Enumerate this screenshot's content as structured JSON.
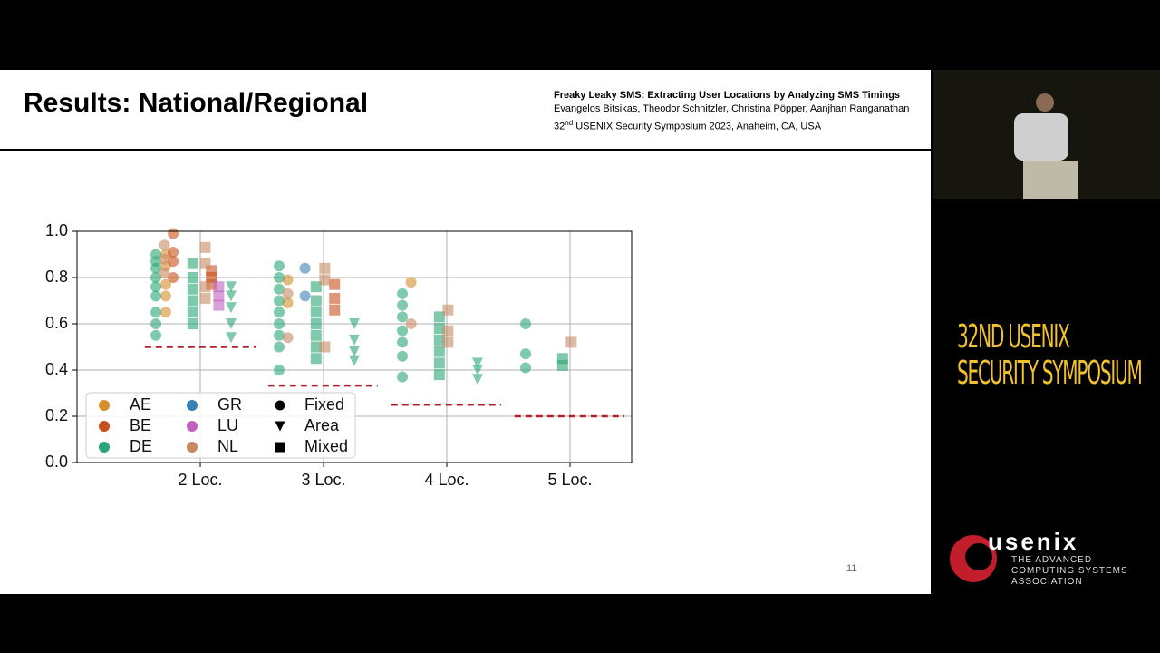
{
  "slide": {
    "title": "Results: National/Regional",
    "citation": {
      "paper": "Freaky Leaky SMS: Extracting User Locations by Analyzing SMS Timings",
      "authors": "Evangelos Bitsikas, Theodor Schnitzler, Christina Pöpper, Aanjhan Ranganathan",
      "venue_number": "32",
      "venue_suffix": "nd",
      "venue_rest": "USENIX Security Symposium 2023, Anaheim, CA, USA"
    },
    "page_number": "11"
  },
  "sidebar": {
    "symposium": [
      "32ND USENIX",
      "SECURITY SYMPOSIUM"
    ],
    "logo": "usenix",
    "tagline": [
      "THE ADVANCED",
      "COMPUTING SYSTEMS",
      "ASSOCIATION"
    ]
  },
  "chart_data": {
    "type": "scatter",
    "xlim": [
      1,
      5.5
    ],
    "ylim": [
      0,
      1
    ],
    "xticks": [
      {
        "value": 2,
        "label": "2 Loc."
      },
      {
        "value": 3,
        "label": "3 Loc."
      },
      {
        "value": 4,
        "label": "4 Loc."
      },
      {
        "value": 5,
        "label": "5 Loc."
      }
    ],
    "yticks": [
      {
        "value": 0,
        "label": "0.0"
      },
      0.2,
      0.4,
      0.6,
      0.8,
      {
        "value": 1,
        "label": "1.0"
      }
    ],
    "grid": true,
    "legend": "lower left",
    "series": [
      {
        "name": "AE",
        "color": "#d4902a",
        "x": [
          1.72,
          1.72,
          1.72,
          1.72,
          1.72,
          2.71,
          2.71,
          3.71
        ],
        "values": [
          0.9,
          0.85,
          0.77,
          0.72,
          0.65,
          0.79,
          0.69,
          0.78
        ],
        "markers": [
          "circle",
          "circle",
          "circle",
          "circle",
          "circle",
          "circle",
          "circle",
          "circle"
        ]
      },
      {
        "name": "BE",
        "color": "#c8501a",
        "x": [
          1.78,
          1.78,
          1.78,
          1.78,
          2.09,
          2.09,
          2.09,
          3.09,
          3.09,
          3.09
        ],
        "values": [
          0.99,
          0.91,
          0.87,
          0.8,
          0.83,
          0.8,
          0.77,
          0.77,
          0.71,
          0.66
        ],
        "markers": [
          "circle",
          "circle",
          "circle",
          "circle",
          "square",
          "square",
          "square",
          "square",
          "square",
          "square"
        ]
      },
      {
        "name": "DE",
        "color": "#2aa774",
        "x": [
          1.64,
          1.64,
          1.64,
          1.64,
          1.64,
          1.64,
          1.64,
          1.64,
          1.64,
          1.94,
          1.94,
          1.94,
          1.94,
          1.94,
          1.94,
          2.25,
          2.25,
          2.25,
          2.25,
          2.25,
          2.64,
          2.64,
          2.64,
          2.64,
          2.64,
          2.64,
          2.64,
          2.64,
          2.64,
          2.94,
          2.94,
          2.94,
          2.94,
          2.94,
          2.94,
          2.94,
          3.25,
          3.25,
          3.25,
          3.25,
          3.64,
          3.64,
          3.64,
          3.64,
          3.64,
          3.64,
          3.64,
          3.94,
          3.94,
          3.94,
          3.94,
          3.94,
          3.94,
          4.25,
          4.25,
          4.25,
          4.64,
          4.64,
          4.64,
          4.94,
          4.94
        ],
        "values": [
          0.9,
          0.87,
          0.84,
          0.8,
          0.76,
          0.72,
          0.65,
          0.6,
          0.55,
          0.86,
          0.8,
          0.75,
          0.7,
          0.65,
          0.6,
          0.76,
          0.72,
          0.67,
          0.6,
          0.54,
          0.85,
          0.8,
          0.75,
          0.7,
          0.65,
          0.6,
          0.55,
          0.5,
          0.4,
          0.76,
          0.7,
          0.65,
          0.6,
          0.55,
          0.5,
          0.45,
          0.6,
          0.53,
          0.48,
          0.44,
          0.73,
          0.68,
          0.63,
          0.57,
          0.52,
          0.46,
          0.37,
          0.63,
          0.58,
          0.53,
          0.48,
          0.43,
          0.38,
          0.43,
          0.4,
          0.36,
          0.6,
          0.47,
          0.41,
          0.45,
          0.42
        ],
        "markers": [
          "circle",
          "circle",
          "circle",
          "circle",
          "circle",
          "circle",
          "circle",
          "circle",
          "circle",
          "square",
          "square",
          "square",
          "square",
          "square",
          "square",
          "triangle",
          "triangle",
          "triangle",
          "triangle",
          "triangle",
          "circle",
          "circle",
          "circle",
          "circle",
          "circle",
          "circle",
          "circle",
          "circle",
          "circle",
          "square",
          "square",
          "square",
          "square",
          "square",
          "square",
          "square",
          "triangle",
          "triangle",
          "triangle",
          "triangle",
          "circle",
          "circle",
          "circle",
          "circle",
          "circle",
          "circle",
          "circle",
          "square",
          "square",
          "square",
          "square",
          "square",
          "square",
          "triangle",
          "triangle",
          "triangle",
          "circle",
          "circle",
          "circle",
          "square",
          "square"
        ]
      },
      {
        "name": "GR",
        "color": "#3a7fb5",
        "x": [
          2.85,
          2.85
        ],
        "values": [
          0.84,
          0.72
        ],
        "markers": [
          "circle",
          "circle"
        ]
      },
      {
        "name": "LU",
        "color": "#c060c0",
        "x": [
          2.15,
          2.15,
          2.15
        ],
        "values": [
          0.76,
          0.72,
          0.68
        ],
        "markers": [
          "square",
          "square",
          "square"
        ]
      },
      {
        "name": "NL",
        "color": "#c88a62",
        "x": [
          1.71,
          1.71,
          1.71,
          2.04,
          2.04,
          2.04,
          2.04,
          2.71,
          2.71,
          3.01,
          3.01,
          3.01,
          3.71,
          4.01,
          4.01,
          4.01,
          5.01
        ],
        "values": [
          0.94,
          0.88,
          0.82,
          0.93,
          0.86,
          0.76,
          0.71,
          0.73,
          0.54,
          0.84,
          0.79,
          0.5,
          0.6,
          0.66,
          0.57,
          0.52,
          0.52
        ],
        "markers": [
          "circle",
          "circle",
          "circle",
          "square",
          "square",
          "square",
          "square",
          "circle",
          "circle",
          "square",
          "square",
          "square",
          "circle",
          "square",
          "square",
          "square",
          "square"
        ]
      }
    ],
    "marker_legend": [
      {
        "name": "Fixed",
        "marker": "circle"
      },
      {
        "name": "Area",
        "marker": "triangle"
      },
      {
        "name": "Mixed",
        "marker": "square"
      }
    ],
    "reference_lines": [
      {
        "x": [
          1.55,
          2.45
        ],
        "y": 0.5,
        "color": "#b22030"
      },
      {
        "x": [
          2.55,
          3.44
        ],
        "y": 0.333,
        "color": "#b22030"
      },
      {
        "x": [
          3.55,
          4.44
        ],
        "y": 0.25,
        "color": "#b22030"
      },
      {
        "x": [
          4.55,
          5.44
        ],
        "y": 0.2,
        "color": "#b22030"
      }
    ]
  }
}
